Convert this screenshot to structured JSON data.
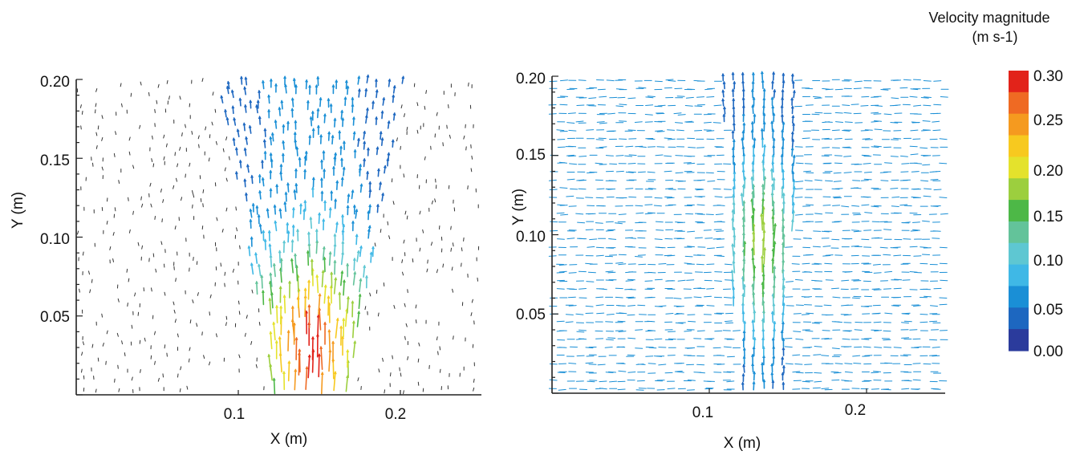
{
  "chart_data": [
    {
      "type": "quiver",
      "xlabel": "X (m)",
      "ylabel": "Y (m)",
      "xlim": [
        0,
        0.25
      ],
      "ylim": [
        0,
        0.2
      ],
      "x_ticks": [
        "0.1",
        "0.2"
      ],
      "x_tick_values": [
        0.1,
        0.2
      ],
      "y_ticks": [
        "0.05",
        "0.10",
        "0.15",
        "0.20"
      ],
      "y_tick_values": [
        0.05,
        0.1,
        0.15,
        0.2
      ],
      "jet": {
        "center_x": 0.145,
        "width": 0.045,
        "max_velocity": 0.3,
        "peak_y": 0.02
      }
    },
    {
      "type": "quiver",
      "xlabel": "X (m)",
      "ylabel": "Y (m)",
      "xlim": [
        0,
        0.25
      ],
      "ylim": [
        0,
        0.2
      ],
      "x_ticks": [
        "0.1",
        "0.2"
      ],
      "x_tick_values": [
        0.1,
        0.2
      ],
      "y_ticks": [
        "0.05",
        "0.10",
        "0.15",
        "0.20"
      ],
      "y_tick_values": [
        0.05,
        0.1,
        0.15,
        0.2
      ],
      "jet": {
        "center_x": 0.133,
        "width": 0.03,
        "max_velocity": 0.16,
        "peak_y": 0.09
      }
    }
  ],
  "colorbar": {
    "title_line1": "Velocity magnitude",
    "title_line2": "(m s-1)",
    "min": 0.0,
    "max": 0.3,
    "labels": [
      "0.30",
      "0.25",
      "0.20",
      "0.15",
      "0.10",
      "0.05",
      "0.00"
    ],
    "label_values": [
      0.3,
      0.25,
      0.2,
      0.15,
      0.1,
      0.05,
      0.0
    ],
    "colors": [
      "#2b3b9c",
      "#1d67c0",
      "#1a8fd6",
      "#3fb8e6",
      "#5ec7d2",
      "#63c39a",
      "#4db847",
      "#9ccf3e",
      "#e4e22c",
      "#f7c91f",
      "#f59a1f",
      "#ef6a23",
      "#e2231a"
    ]
  }
}
